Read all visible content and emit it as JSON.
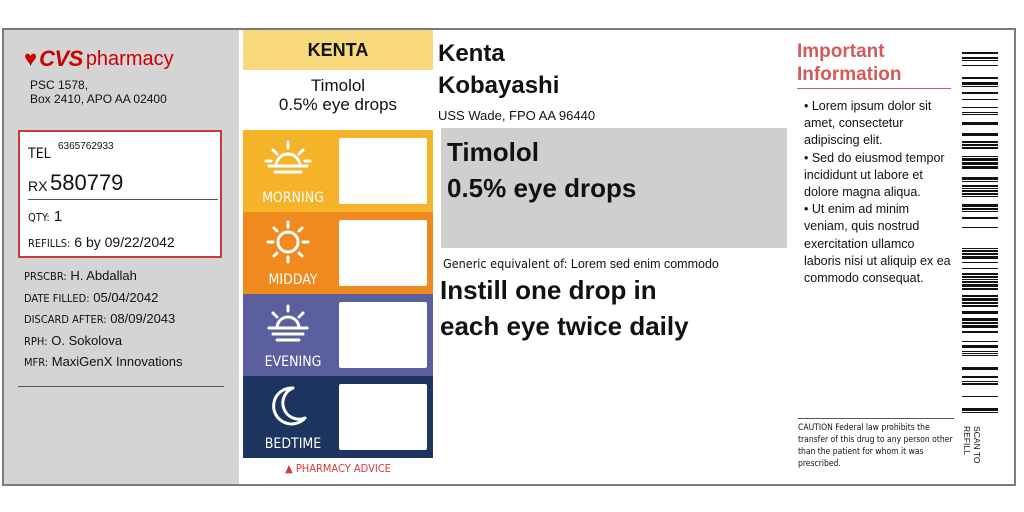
{
  "pharmacy": {
    "logo_text": "CVS pharmacy",
    "logo_brand": "CVS",
    "logo_word": "pharmacy",
    "address_line1": "PSC 1578,",
    "address_line2": "Box 2410, APO AA 02400"
  },
  "rx_box": {
    "tel_label": "TEL",
    "tel_value": "6365762933",
    "rx_label": "RX",
    "rx_number": "580779",
    "qty_label": "QTY:",
    "qty_value": "1",
    "refills_label": "REFILLS:",
    "refills_value": "6 by 09/22/2042"
  },
  "details": [
    {
      "label": "PRSCBR:",
      "value": "H. Abdallah"
    },
    {
      "label": "DATE FILLED:",
      "value": "05/04/2042"
    },
    {
      "label": "DISCARD AFTER:",
      "value": "08/09/2043"
    },
    {
      "label": "RPH:",
      "value": "O. Sokolova"
    },
    {
      "label": "MFR:",
      "value": "MaxiGenX Innovations"
    }
  ],
  "schedule": {
    "patient_first": "KENTA",
    "drug_line1": "Timolol",
    "drug_line2": "0.5% eye drops",
    "periods": [
      {
        "label": "MORNING",
        "icon": "sunrise-icon",
        "color": "#f5b32a"
      },
      {
        "label": "MIDDAY",
        "icon": "sun-icon",
        "color": "#f08a1e"
      },
      {
        "label": "EVENING",
        "icon": "sunset-icon",
        "color": "#5b5f9e"
      },
      {
        "label": "BEDTIME",
        "icon": "moon-icon",
        "color": "#1c3460"
      }
    ],
    "advice": "▲ PHARMACY ADVICE"
  },
  "patient": {
    "first_name": "Kenta",
    "last_name": "Kobayashi",
    "address": "USS Wade, FPO AA 96440"
  },
  "drug": {
    "line1": "Timolol",
    "line2": "0.5% eye drops",
    "generic_label": "Generic equivalent of:",
    "generic_value": "Lorem sed enim commodo"
  },
  "instructions": {
    "line1": "Instill one drop in",
    "line2": "each eye twice daily"
  },
  "important": {
    "title_line1": "Important",
    "title_line2": "Information",
    "bullets": [
      "• Lorem ipsum dolor sit amet, consectetur adipiscing elit.",
      "• Sed do eiusmod tempor incididunt ut labore et dolore magna aliqua.",
      "• Ut enim ad minim veniam, quis nostrud exercitation ullamco laboris nisi ut aliquip ex ea commodo consequat."
    ],
    "caution": "CAUTION Federal law prohibits the transfer of this drug to any person other than the patient for whom it was prescribed."
  },
  "side": {
    "scan_line1": "SCAN TO",
    "scan_line2": "REFILL"
  },
  "colors": {
    "brand_red": "#cc0000",
    "label_gray": "#d4d4d4",
    "name_bar": "#f7d87a",
    "info_red": "#d25a5a"
  }
}
